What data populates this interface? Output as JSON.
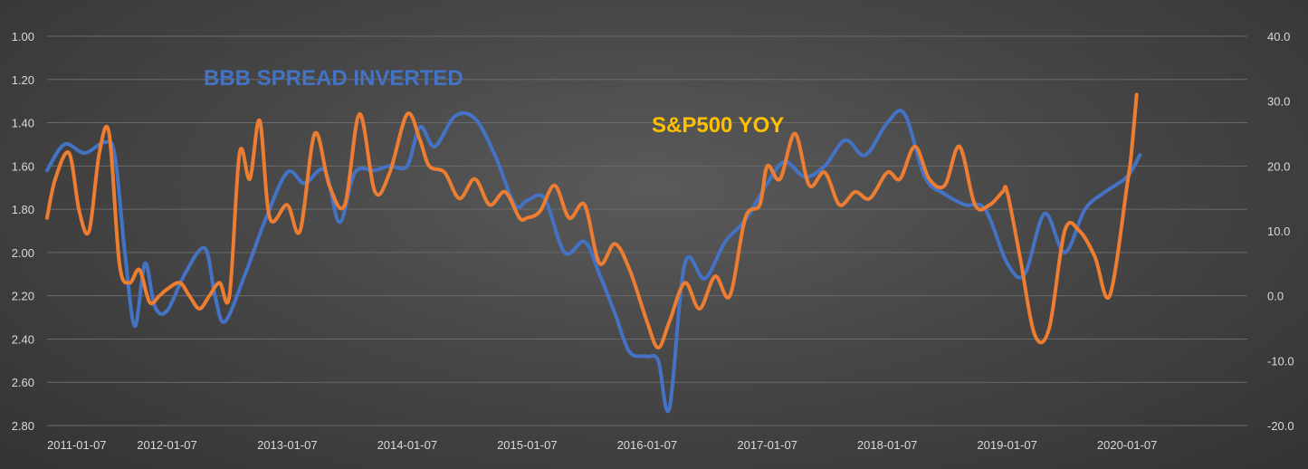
{
  "chart_data": {
    "type": "line",
    "title": "",
    "x_start": "2011-01-07",
    "x_tick_labels": [
      "2011-01-07",
      "2012-01-07",
      "2013-01-07",
      "2014-01-07",
      "2015-01-07",
      "2016-01-07",
      "2017-01-07",
      "2018-01-07",
      "2019-01-07",
      "2020-01-07"
    ],
    "x_range": [
      "2011-01-07",
      "2021-01-07"
    ],
    "y_left": {
      "inverted": true,
      "range": [
        1.0,
        2.8
      ],
      "tick_labels": [
        "1.00",
        "1.20",
        "1.40",
        "1.60",
        "1.80",
        "2.00",
        "2.20",
        "2.40",
        "2.60",
        "2.80"
      ]
    },
    "y_right": {
      "range": [
        -20,
        40
      ],
      "tick_labels": [
        "40.0",
        "30.0",
        "20.0",
        "10.0",
        "0.0",
        "-10.0",
        "-20.0"
      ]
    },
    "grid": true,
    "annotations": [
      {
        "text": "BBB SPREAD INVERTED",
        "series": "bbb_spread"
      },
      {
        "text": "S&P500 YOY",
        "series": "sp500_yoy"
      }
    ],
    "series": [
      {
        "key": "bbb_spread",
        "axis": "left",
        "color": "#4472c4",
        "x": [
          "2011-01-07",
          "2011-03-01",
          "2011-05-01",
          "2011-07-01",
          "2011-08-01",
          "2011-09-01",
          "2011-10-01",
          "2011-11-01",
          "2011-12-01",
          "2012-01-07",
          "2012-03-01",
          "2012-05-01",
          "2012-06-01",
          "2012-07-01",
          "2012-09-01",
          "2012-11-01",
          "2013-01-07",
          "2013-03-01",
          "2013-05-01",
          "2013-06-15",
          "2013-08-01",
          "2013-10-01",
          "2013-11-15",
          "2014-01-07",
          "2014-02-15",
          "2014-04-01",
          "2014-06-01",
          "2014-08-01",
          "2014-10-01",
          "2014-12-01",
          "2015-01-07",
          "2015-03-01",
          "2015-05-01",
          "2015-07-01",
          "2015-08-15",
          "2015-10-01",
          "2015-11-15",
          "2016-01-07",
          "2016-02-10",
          "2016-03-15",
          "2016-05-01",
          "2016-07-01",
          "2016-09-01",
          "2016-11-01",
          "2017-01-07",
          "2017-03-01",
          "2017-05-01",
          "2017-07-01",
          "2017-09-01",
          "2017-11-01",
          "2018-01-07",
          "2018-03-01",
          "2018-05-01",
          "2018-07-01",
          "2018-09-01",
          "2018-11-01",
          "2019-01-07",
          "2019-03-01",
          "2019-05-01",
          "2019-07-01",
          "2019-09-01",
          "2019-11-01",
          "2020-01-07",
          "2020-02-15"
        ],
        "y": [
          1.62,
          1.5,
          1.54,
          1.49,
          1.55,
          2.0,
          2.34,
          2.05,
          2.25,
          2.27,
          2.1,
          1.98,
          2.2,
          2.32,
          2.1,
          1.85,
          1.63,
          1.68,
          1.62,
          1.86,
          1.63,
          1.62,
          1.6,
          1.6,
          1.42,
          1.51,
          1.37,
          1.38,
          1.55,
          1.78,
          1.76,
          1.75,
          2.0,
          1.95,
          2.1,
          2.28,
          2.46,
          2.48,
          2.5,
          2.72,
          2.05,
          2.12,
          1.95,
          1.85,
          1.68,
          1.58,
          1.65,
          1.6,
          1.48,
          1.55,
          1.4,
          1.36,
          1.65,
          1.73,
          1.78,
          1.8,
          2.05,
          2.1,
          1.82,
          2.0,
          1.8,
          1.72,
          1.65,
          1.55
        ]
      },
      {
        "key": "sp500_yoy",
        "axis": "right",
        "color": "#ed7d31",
        "x": [
          "2011-01-07",
          "2011-02-01",
          "2011-03-15",
          "2011-04-15",
          "2011-05-15",
          "2011-06-15",
          "2011-07-15",
          "2011-08-15",
          "2011-09-15",
          "2011-10-15",
          "2011-11-15",
          "2011-12-15",
          "2012-01-07",
          "2012-02-15",
          "2012-03-15",
          "2012-04-15",
          "2012-05-15",
          "2012-06-15",
          "2012-07-15",
          "2012-08-15",
          "2012-09-15",
          "2012-10-15",
          "2012-11-15",
          "2013-01-07",
          "2013-02-15",
          "2013-04-01",
          "2013-05-15",
          "2013-07-01",
          "2013-08-15",
          "2013-10-01",
          "2013-11-15",
          "2014-01-07",
          "2014-02-15",
          "2014-03-15",
          "2014-05-01",
          "2014-06-15",
          "2014-08-01",
          "2014-09-15",
          "2014-11-01",
          "2014-12-15",
          "2015-01-07",
          "2015-02-15",
          "2015-04-01",
          "2015-05-15",
          "2015-07-01",
          "2015-08-15",
          "2015-10-01",
          "2015-11-15",
          "2016-01-07",
          "2016-02-10",
          "2016-03-15",
          "2016-05-01",
          "2016-06-15",
          "2016-08-01",
          "2016-09-15",
          "2016-11-01",
          "2016-12-15",
          "2017-01-07",
          "2017-02-15",
          "2017-04-01",
          "2017-05-15",
          "2017-07-01",
          "2017-08-15",
          "2017-10-01",
          "2017-11-15",
          "2018-01-07",
          "2018-02-15",
          "2018-04-01",
          "2018-05-15",
          "2018-07-01",
          "2018-08-15",
          "2018-10-01",
          "2018-11-15",
          "2018-12-24",
          "2019-01-07",
          "2019-02-15",
          "2019-04-01",
          "2019-05-15",
          "2019-07-01",
          "2019-08-15",
          "2019-10-01",
          "2019-11-15",
          "2020-01-07",
          "2020-01-20",
          "2020-02-05"
        ],
        "y": [
          12,
          18,
          22,
          13,
          10,
          22,
          25,
          5,
          2,
          4,
          -1,
          0,
          1,
          2,
          0,
          -2,
          0,
          2,
          0,
          22,
          18,
          27,
          12,
          14,
          10,
          25,
          17,
          14,
          28,
          16,
          19,
          28,
          24,
          20,
          19,
          15,
          18,
          14,
          16,
          12,
          12,
          13,
          17,
          12,
          14,
          5,
          8,
          4,
          -4,
          -8,
          -4,
          2,
          -2,
          3,
          0,
          12,
          14,
          20,
          18,
          25,
          17,
          19,
          14,
          16,
          15,
          19,
          18,
          23,
          18,
          17,
          23,
          14,
          14,
          16,
          16,
          6,
          -6,
          -5,
          10,
          10,
          6,
          0,
          17,
          22,
          31
        ]
      }
    ]
  }
}
